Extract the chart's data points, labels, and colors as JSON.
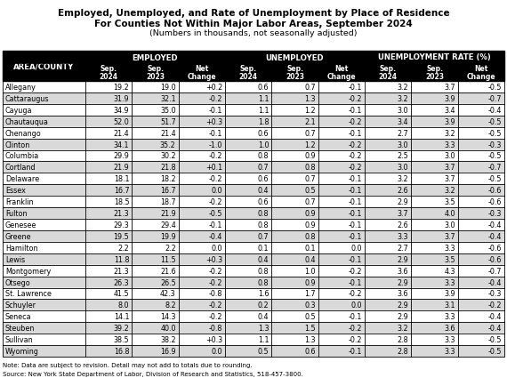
{
  "title_line1": "Employed, Unemployed, and Rate of Unemployment by Place of Residence",
  "title_line2": "For Counties Not Within Major Labor Areas, September 2024",
  "subtitle": "(Numbers in thousands, not seasonally adjusted)",
  "note": "Note: Data are subject to revision. Detail may not add to totals due to rounding.",
  "source": "Source: New York State Department of Labor, Division of Research and Statistics, 518-457-3800.",
  "col_groups": [
    "EMPLOYED",
    "UNEMPLOYED",
    "UNEMPLOYMENT RATE (%)"
  ],
  "col_subheaders": [
    "Sep.\n2024",
    "Sep.\n2023",
    "Net\nChange"
  ],
  "area_county_label": "AREA/COUNTY",
  "rows": [
    [
      "Allegany",
      "19.2",
      "19.0",
      "+0.2",
      "0.6",
      "0.7",
      "-0.1",
      "3.2",
      "3.7",
      "-0.5"
    ],
    [
      "Cattaraugus",
      "31.9",
      "32.1",
      "-0.2",
      "1.1",
      "1.3",
      "-0.2",
      "3.2",
      "3.9",
      "-0.7"
    ],
    [
      "Cayuga",
      "34.9",
      "35.0",
      "-0.1",
      "1.1",
      "1.2",
      "-0.1",
      "3.0",
      "3.4",
      "-0.4"
    ],
    [
      "Chautauqua",
      "52.0",
      "51.7",
      "+0.3",
      "1.8",
      "2.1",
      "-0.2",
      "3.4",
      "3.9",
      "-0.5"
    ],
    [
      "Chenango",
      "21.4",
      "21.4",
      "-0.1",
      "0.6",
      "0.7",
      "-0.1",
      "2.7",
      "3.2",
      "-0.5"
    ],
    [
      "Clinton",
      "34.1",
      "35.2",
      "-1.0",
      "1.0",
      "1.2",
      "-0.2",
      "3.0",
      "3.3",
      "-0.3"
    ],
    [
      "Columbia",
      "29.9",
      "30.2",
      "-0.2",
      "0.8",
      "0.9",
      "-0.2",
      "2.5",
      "3.0",
      "-0.5"
    ],
    [
      "Cortland",
      "21.9",
      "21.8",
      "+0.1",
      "0.7",
      "0.8",
      "-0.2",
      "3.0",
      "3.7",
      "-0.7"
    ],
    [
      "Delaware",
      "18.1",
      "18.2",
      "-0.2",
      "0.6",
      "0.7",
      "-0.1",
      "3.2",
      "3.7",
      "-0.5"
    ],
    [
      "Essex",
      "16.7",
      "16.7",
      "0.0",
      "0.4",
      "0.5",
      "-0.1",
      "2.6",
      "3.2",
      "-0.6"
    ],
    [
      "Franklin",
      "18.5",
      "18.7",
      "-0.2",
      "0.6",
      "0.7",
      "-0.1",
      "2.9",
      "3.5",
      "-0.6"
    ],
    [
      "Fulton",
      "21.3",
      "21.9",
      "-0.5",
      "0.8",
      "0.9",
      "-0.1",
      "3.7",
      "4.0",
      "-0.3"
    ],
    [
      "Genesee",
      "29.3",
      "29.4",
      "-0.1",
      "0.8",
      "0.9",
      "-0.1",
      "2.6",
      "3.0",
      "-0.4"
    ],
    [
      "Greene",
      "19.5",
      "19.9",
      "-0.4",
      "0.7",
      "0.8",
      "-0.1",
      "3.3",
      "3.7",
      "-0.4"
    ],
    [
      "Hamilton",
      "2.2",
      "2.2",
      "0.0",
      "0.1",
      "0.1",
      "0.0",
      "2.7",
      "3.3",
      "-0.6"
    ],
    [
      "Lewis",
      "11.8",
      "11.5",
      "+0.3",
      "0.4",
      "0.4",
      "-0.1",
      "2.9",
      "3.5",
      "-0.6"
    ],
    [
      "Montgomery",
      "21.3",
      "21.6",
      "-0.2",
      "0.8",
      "1.0",
      "-0.2",
      "3.6",
      "4.3",
      "-0.7"
    ],
    [
      "Otsego",
      "26.3",
      "26.5",
      "-0.2",
      "0.8",
      "0.9",
      "-0.1",
      "2.9",
      "3.3",
      "-0.4"
    ],
    [
      "St. Lawrence",
      "41.5",
      "42.3",
      "-0.8",
      "1.6",
      "1.7",
      "-0.2",
      "3.6",
      "3.9",
      "-0.3"
    ],
    [
      "Schuyler",
      "8.0",
      "8.2",
      "-0.2",
      "0.2",
      "0.3",
      "0.0",
      "2.9",
      "3.1",
      "-0.2"
    ],
    [
      "Seneca",
      "14.1",
      "14.3",
      "-0.2",
      "0.4",
      "0.5",
      "-0.1",
      "2.9",
      "3.3",
      "-0.4"
    ],
    [
      "Steuben",
      "39.2",
      "40.0",
      "-0.8",
      "1.3",
      "1.5",
      "-0.2",
      "3.2",
      "3.6",
      "-0.4"
    ],
    [
      "Sullivan",
      "38.5",
      "38.2",
      "+0.3",
      "1.1",
      "1.3",
      "-0.2",
      "2.8",
      "3.3",
      "-0.5"
    ],
    [
      "Wyoming",
      "16.8",
      "16.9",
      "0.0",
      "0.5",
      "0.6",
      "-0.1",
      "2.8",
      "3.3",
      "-0.5"
    ]
  ],
  "header_bg": "#000000",
  "header_fg": "#ffffff",
  "row_bg_even": "#ffffff",
  "row_bg_odd": "#d9d9d9",
  "row_fg": "#000000",
  "border_color": "#000000",
  "title_fontsize": 7.5,
  "subtitle_fontsize": 6.8,
  "data_fontsize": 5.8,
  "header_fontsize": 6.2,
  "note_fontsize": 5.0
}
